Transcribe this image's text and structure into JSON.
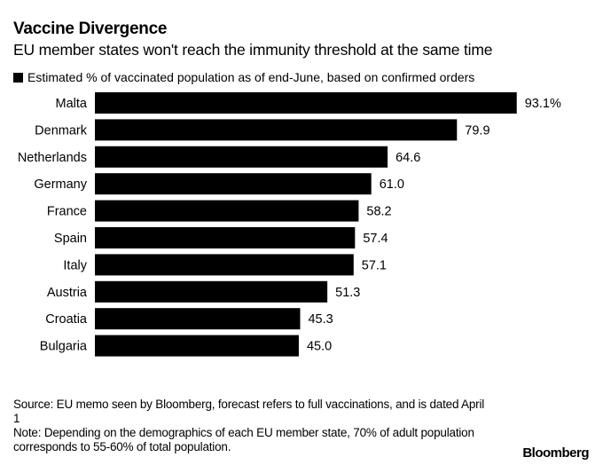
{
  "chart_data": {
    "type": "bar",
    "orientation": "horizontal",
    "title": "Vaccine Divergence",
    "subtitle": "EU member states won't reach the immunity threshold at the same time",
    "legend": [
      {
        "name": "Estimated % of vaccinated population as of end-June, based on confirmed orders",
        "color": "#000000"
      }
    ],
    "legend_placement": "top-left",
    "categories": [
      "Malta",
      "Denmark",
      "Netherlands",
      "Germany",
      "France",
      "Spain",
      "Italy",
      "Austria",
      "Croatia",
      "Bulgaria"
    ],
    "values": [
      93.1,
      79.9,
      64.6,
      61.0,
      58.2,
      57.4,
      57.1,
      51.3,
      45.3,
      45.0
    ],
    "value_labels": [
      "93.1%",
      "79.9",
      "64.6",
      "61.0",
      "58.2",
      "57.4",
      "57.1",
      "51.3",
      "45.3",
      "45.0"
    ],
    "xlabel": "",
    "ylabel": "",
    "xlim": [
      0,
      100
    ],
    "grid": false,
    "bar_color": "#000000"
  },
  "footer": {
    "source": "Source: EU memo seen by Bloomberg, forecast refers to full vaccinations, and is dated April 1",
    "note": "Note: Depending on the demographics of each EU member state, 70% of adult population corresponds to 55-60% of total population."
  },
  "brand": "Bloomberg"
}
